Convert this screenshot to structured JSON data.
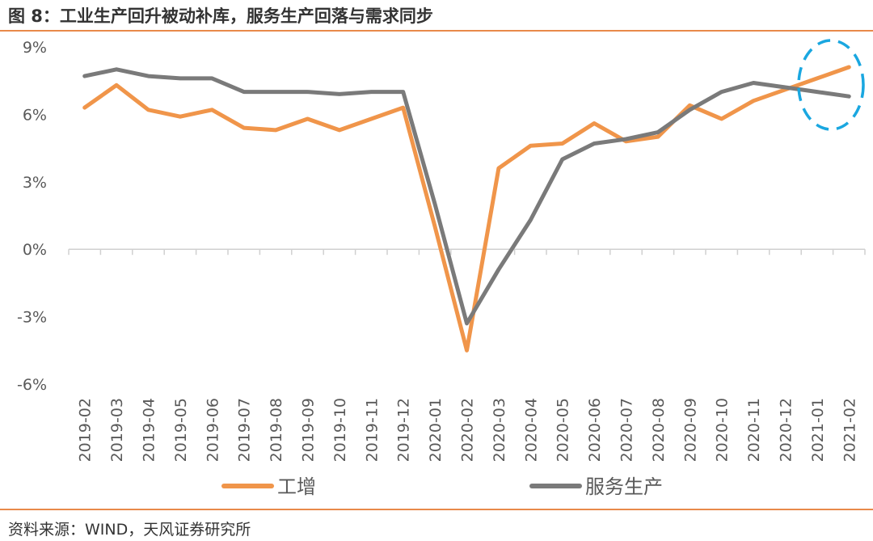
{
  "header": {
    "title": "图 8：工业生产回升被动补库，服务生产回落与需求同步"
  },
  "footer": {
    "source": "资料来源：WIND，天风证券研究所"
  },
  "colors": {
    "accent": "#e8894a",
    "industry": "#f0954a",
    "service": "#7a7a7a",
    "highlight": "#1aa7e0"
  },
  "chart_data": {
    "type": "line",
    "categories": [
      "2019-02",
      "2019-03",
      "2019-04",
      "2019-05",
      "2019-06",
      "2019-07",
      "2019-08",
      "2019-09",
      "2019-10",
      "2019-11",
      "2019-12",
      "2020-01",
      "2020-02",
      "2020-03",
      "2020-04",
      "2020-05",
      "2020-06",
      "2020-07",
      "2020-08",
      "2020-09",
      "2020-10",
      "2020-11",
      "2020-12",
      "2021-01",
      "2021-02"
    ],
    "ylim": [
      -6,
      9
    ],
    "yticks": [
      -6,
      -3,
      0,
      3,
      6,
      9
    ],
    "ytick_labels": [
      "-6%",
      "-3%",
      "0%",
      "3%",
      "6%",
      "9%"
    ],
    "series": [
      {
        "name": "工增",
        "color": "#f0954a",
        "values": [
          6.3,
          7.3,
          6.2,
          5.9,
          6.2,
          5.4,
          5.3,
          5.8,
          5.3,
          5.8,
          6.3,
          1.0,
          -4.5,
          3.6,
          4.6,
          4.7,
          5.6,
          4.8,
          5.0,
          6.4,
          5.8,
          6.6,
          7.1,
          7.6,
          8.1
        ]
      },
      {
        "name": "服务生产",
        "color": "#7a7a7a",
        "values": [
          7.7,
          8.0,
          7.7,
          7.6,
          7.6,
          7.0,
          7.0,
          7.0,
          6.9,
          7.0,
          7.0,
          2.0,
          -3.3,
          -0.9,
          1.3,
          4.0,
          4.7,
          4.9,
          5.2,
          6.2,
          7.0,
          7.4,
          7.2,
          7.0,
          6.8
        ]
      }
    ],
    "legend_position": "bottom",
    "grid": false
  }
}
